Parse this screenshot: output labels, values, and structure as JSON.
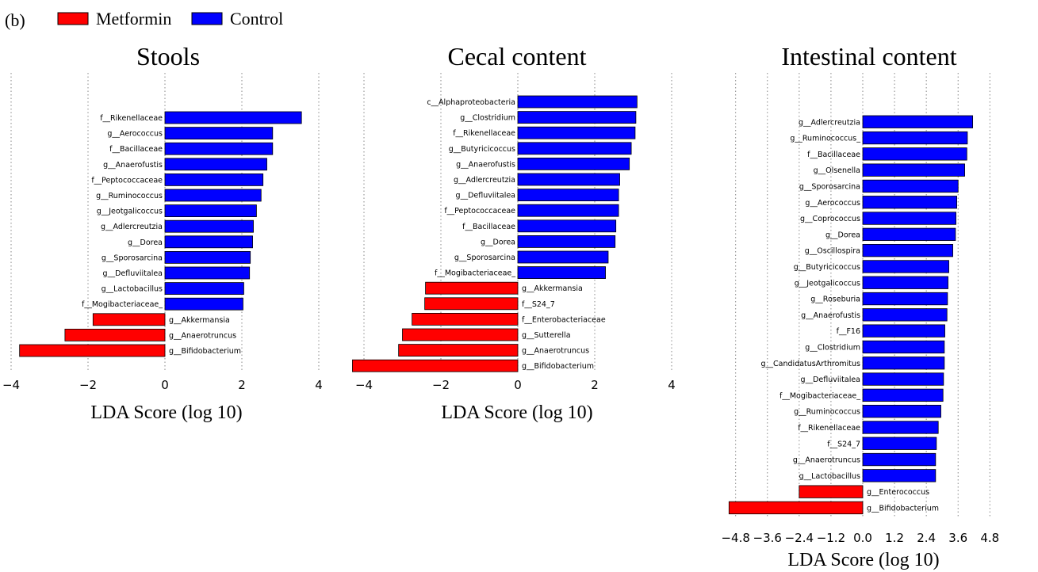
{
  "panel_label": "(b)",
  "legend": {
    "items": [
      {
        "label": "Metformin",
        "color": "#ff0000"
      },
      {
        "label": "Control",
        "color": "#0000ff"
      }
    ]
  },
  "colors": {
    "metformin": "#ff0000",
    "control": "#0000ff",
    "edge": "#000000",
    "grid": "#888888"
  },
  "chart_data": [
    {
      "type": "bar",
      "orientation": "horizontal",
      "title": "Stools",
      "xlabel": "LDA Score (log 10)",
      "xlim": [
        -4,
        4
      ],
      "xticks": [
        -4,
        -2,
        0,
        2,
        4
      ],
      "grid": true,
      "categories": [
        "f__Rikenellaceae",
        "g__Aerococcus",
        "f__Bacillaceae",
        "g__Anaerofustis",
        "f__Peptococcaceae",
        "g__Ruminococcus",
        "g__Jeotgalicoccus",
        "g__Adlercreutzia",
        "g__Dorea",
        "g__Sporosarcina",
        "g__Defluviitalea",
        "g__Lactobacillus",
        "f__Mogibacteriaceae_",
        "g__Akkermansia",
        "g__Anaerotruncus",
        "g__Bifidobacterium"
      ],
      "values": [
        3.55,
        2.8,
        2.8,
        2.65,
        2.55,
        2.5,
        2.38,
        2.3,
        2.28,
        2.22,
        2.2,
        2.05,
        2.03,
        -1.87,
        -2.6,
        -3.78
      ]
    },
    {
      "type": "bar",
      "orientation": "horizontal",
      "title": "Cecal content",
      "xlabel": "LDA Score (log 10)",
      "xlim": [
        -4.3,
        4.3
      ],
      "xticks": [
        -4,
        -2,
        0,
        2,
        4
      ],
      "grid": true,
      "categories": [
        "c__Alphaproteobacteria",
        "g__Clostridium",
        "f__Rikenellaceae",
        "g__Butyricicoccus",
        "g__Anaerofustis",
        "g__Adlercreutzia",
        "g__Defluviitalea",
        "f__Peptococcaceae",
        "f__Bacillaceae",
        "g__Dorea",
        "g__Sporosarcina",
        "f__Mogibacteriaceae_",
        "g__Akkermansia",
        "f__S24_7",
        "f__Enterobacteriaceae",
        "g__Sutterella",
        "g__Anaerotruncus",
        "g__Bifidobacterium"
      ],
      "values": [
        3.1,
        3.07,
        3.05,
        2.95,
        2.9,
        2.65,
        2.62,
        2.62,
        2.55,
        2.53,
        2.35,
        2.28,
        -2.4,
        -2.42,
        -2.75,
        -3.0,
        -3.1,
        -4.3
      ]
    },
    {
      "type": "bar",
      "orientation": "horizontal",
      "title": "Intestinal content",
      "xlabel": "LDA Score (log 10)",
      "xlim": [
        -5.2,
        5.2
      ],
      "xticks": [
        -4.8,
        -3.6,
        -2.4,
        -1.2,
        0.0,
        1.2,
        2.4,
        3.6,
        4.8
      ],
      "xtick_labels": [
        "−4.8",
        "−3.6",
        "−2.4",
        "−1.2",
        "0.0",
        "1.2",
        "2.4",
        "3.6",
        "4.8"
      ],
      "grid": true,
      "categories": [
        "g__Adlercreutzia",
        "g__Ruminococcus_",
        "f__Bacillaceae",
        "g__Olsenella",
        "g__Sporosarcina",
        "g__Aerococcus",
        "g__Coprococcus",
        "g__Dorea",
        "g__Oscillospira",
        "g__Butyricicoccus",
        "g__Jeotgalicoccus",
        "g__Roseburia",
        "g__Anaerofustis",
        "f__F16",
        "g__Clostridium",
        "g__CandidatusArthromitus",
        "g__Defluviitalea",
        "f__Mogibacteriaceae_",
        "g__Ruminococcus",
        "f__Rikenellaceae",
        "f__S24_7",
        "g__Anaerotruncus",
        "g__Lactobacillus",
        "g__Enterococcus",
        "g__Bifidobacterium"
      ],
      "values": [
        4.15,
        3.95,
        3.93,
        3.85,
        3.6,
        3.55,
        3.52,
        3.5,
        3.4,
        3.25,
        3.22,
        3.2,
        3.18,
        3.1,
        3.08,
        3.08,
        3.05,
        3.03,
        2.95,
        2.85,
        2.78,
        2.75,
        2.75,
        -2.4,
        -5.05
      ]
    }
  ]
}
